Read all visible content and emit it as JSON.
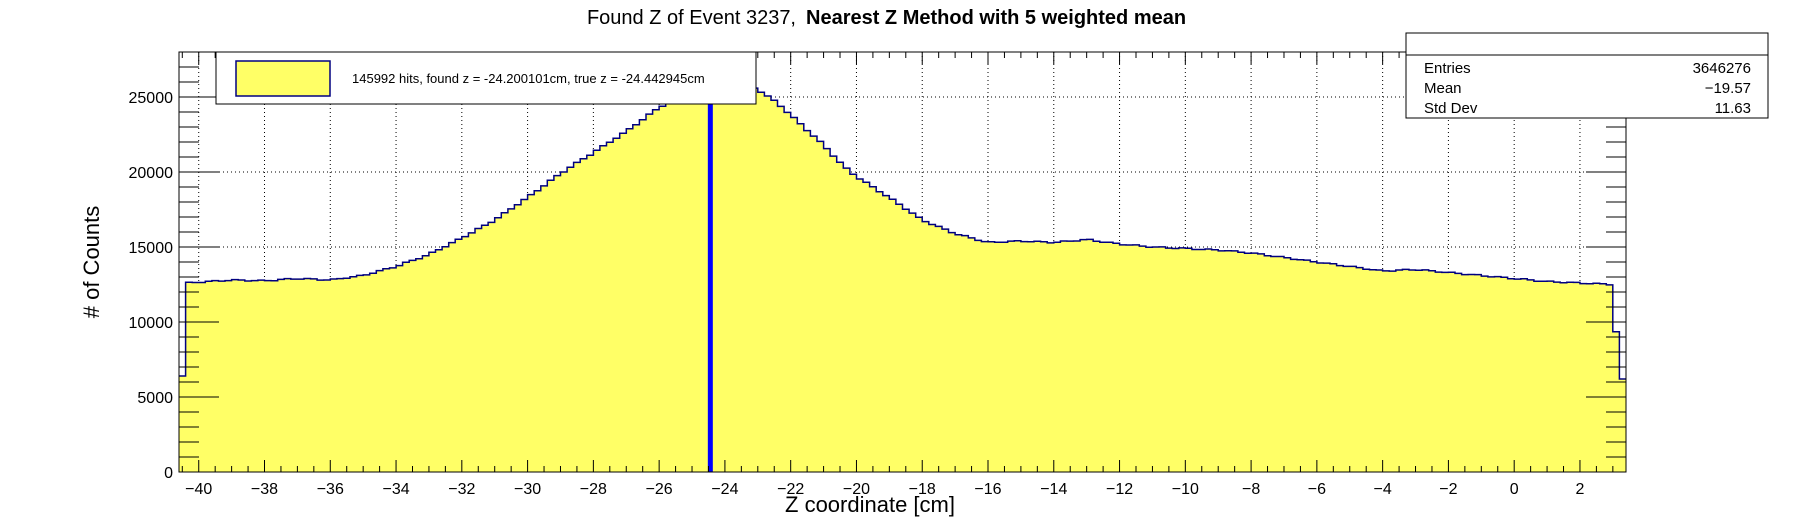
{
  "chart_data": {
    "type": "bar",
    "title_regular": "Found Z of Event 3237,",
    "title_bold": "Nearest Z Method with 5 weighted mean",
    "xlabel": "Z coordinate [cm]",
    "ylabel": "# of Counts",
    "xlim": [
      -40.6,
      3.4
    ],
    "ylim": [
      0,
      28000
    ],
    "x_ticks": [
      -40,
      -38,
      -36,
      -34,
      -32,
      -30,
      -28,
      -26,
      -24,
      -22,
      -20,
      -18,
      -16,
      -14,
      -12,
      -10,
      -8,
      -6,
      -4,
      -2,
      0,
      2
    ],
    "x_tick_labels": [
      "−40",
      "−38",
      "−36",
      "−34",
      "−32",
      "−30",
      "−28",
      "−26",
      "−24",
      "−22",
      "−20",
      "−18",
      "−16",
      "−14",
      "−12",
      "−10",
      "−8",
      "−6",
      "−4",
      "−2",
      "0",
      "2"
    ],
    "y_ticks": [
      0,
      5000,
      10000,
      15000,
      20000,
      25000
    ],
    "y_tick_labels": [
      "0",
      "5000",
      "10000",
      "15000",
      "20000",
      "25000"
    ],
    "bin_width": 0.2,
    "profile": [
      [
        -40.6,
        6400
      ],
      [
        -40.4,
        12600
      ],
      [
        -39.0,
        12800
      ],
      [
        -38.0,
        12750
      ],
      [
        -37.0,
        12900
      ],
      [
        -36.0,
        12800
      ],
      [
        -35.0,
        13100
      ],
      [
        -34.0,
        13700
      ],
      [
        -33.0,
        14500
      ],
      [
        -32.0,
        15600
      ],
      [
        -31.0,
        16800
      ],
      [
        -30.0,
        18300
      ],
      [
        -29.0,
        19900
      ],
      [
        -28.0,
        21300
      ],
      [
        -27.0,
        22700
      ],
      [
        -26.0,
        24300
      ],
      [
        -25.4,
        25000
      ],
      [
        -24.6,
        25400
      ],
      [
        -24.0,
        26000
      ],
      [
        -23.4,
        25900
      ],
      [
        -23.0,
        25500
      ],
      [
        -22.4,
        24600
      ],
      [
        -22.0,
        23800
      ],
      [
        -21.6,
        23000
      ],
      [
        -21.0,
        21800
      ],
      [
        -20.4,
        20400
      ],
      [
        -20.0,
        19700
      ],
      [
        -19.0,
        18300
      ],
      [
        -18.0,
        16800
      ],
      [
        -17.0,
        15900
      ],
      [
        -16.0,
        15300
      ],
      [
        -15.0,
        15400
      ],
      [
        -14.0,
        15300
      ],
      [
        -13.0,
        15500
      ],
      [
        -12.0,
        15200
      ],
      [
        -11.0,
        15000
      ],
      [
        -10.0,
        14900
      ],
      [
        -9.0,
        14800
      ],
      [
        -8.0,
        14600
      ],
      [
        -7.0,
        14300
      ],
      [
        -6.0,
        14000
      ],
      [
        -5.0,
        13700
      ],
      [
        -4.0,
        13400
      ],
      [
        -3.0,
        13500
      ],
      [
        -2.0,
        13300
      ],
      [
        -1.0,
        13100
      ],
      [
        0.0,
        12900
      ],
      [
        1.0,
        12700
      ],
      [
        2.0,
        12600
      ],
      [
        3.0,
        12500
      ],
      [
        3.2,
        6200
      ],
      [
        3.4,
        6200
      ]
    ],
    "lines": [
      {
        "name": "found z",
        "x": -24.200101,
        "color": "#0000ff",
        "style": "solid"
      },
      {
        "name": "true z",
        "x": -24.442945,
        "color": "#ff0000",
        "style": "dotted"
      }
    ],
    "legend": {
      "label": "145992 hits, found z = -24.200101cm, true z = -24.442945cm",
      "placement": "top-left"
    },
    "stats": {
      "placement": "top-right",
      "rows": [
        {
          "label": "Entries",
          "value": "3646276"
        },
        {
          "label": "Mean",
          "value": "−19.57"
        },
        {
          "label": "Std Dev",
          "value": "11.63"
        }
      ]
    },
    "colors": {
      "fill": "#ffff66",
      "outline": "#000080",
      "found_line": "#0000ff",
      "true_line": "#ff0000"
    }
  }
}
